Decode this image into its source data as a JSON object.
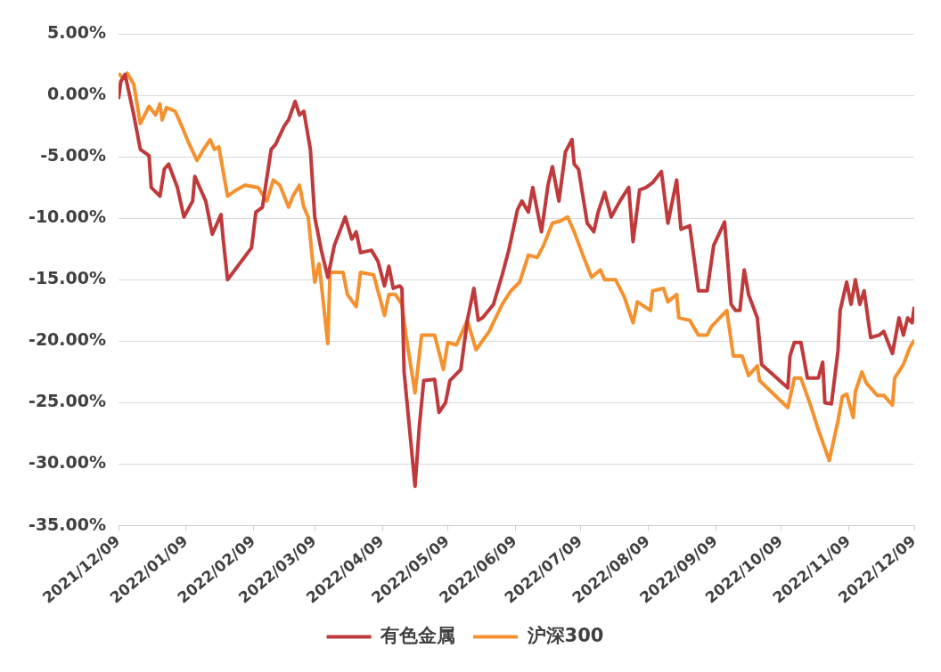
{
  "chart_data": {
    "type": "line",
    "xlim": [
      "2021-12-09",
      "2022-12-09"
    ],
    "xticks": [
      {
        "value": "2021-12-09",
        "label": "2021/12/09"
      },
      {
        "value": "2022-01-09",
        "label": "2022/01/09"
      },
      {
        "value": "2022-02-09",
        "label": "2022/02/09"
      },
      {
        "value": "2022-03-09",
        "label": "2022/03/09"
      },
      {
        "value": "2022-04-09",
        "label": "2022/04/09"
      },
      {
        "value": "2022-05-09",
        "label": "2022/05/09"
      },
      {
        "value": "2022-06-09",
        "label": "2022/06/09"
      },
      {
        "value": "2022-07-09",
        "label": "2022/07/09"
      },
      {
        "value": "2022-08-09",
        "label": "2022/08/09"
      },
      {
        "value": "2022-09-09",
        "label": "2022/09/09"
      },
      {
        "value": "2022-10-09",
        "label": "2022/10/09"
      },
      {
        "value": "2022-11-09",
        "label": "2022/11/09"
      },
      {
        "value": "2022-12-09",
        "label": "2022/12/09"
      }
    ],
    "ylim": [
      -35,
      5
    ],
    "yticks": [
      {
        "value": 5,
        "label": "5.00%"
      },
      {
        "value": 0,
        "label": "0.00%"
      },
      {
        "value": -5,
        "label": "-5.00%"
      },
      {
        "value": -10,
        "label": "-10.00%"
      },
      {
        "value": -15,
        "label": "-15.00%"
      },
      {
        "value": -20,
        "label": "-20.00%"
      },
      {
        "value": -25,
        "label": "-25.00%"
      },
      {
        "value": -30,
        "label": "-30.00%"
      },
      {
        "value": -35,
        "label": "-35.00%"
      }
    ],
    "grid": "y",
    "legend": "bottom",
    "marker": "none",
    "series": [
      {
        "name": "有色金属",
        "color": "#c0393b",
        "x": [
          "2021-12-09",
          "2021-12-10",
          "2021-12-12",
          "2021-12-16",
          "2021-12-19",
          "2021-12-23",
          "2021-12-24",
          "2021-12-28",
          "2021-12-30",
          "2022-01-01",
          "2022-01-05",
          "2022-01-08",
          "2022-01-12",
          "2022-01-13",
          "2022-01-18",
          "2022-01-21",
          "2022-01-25",
          "2022-01-26",
          "2022-01-28",
          "2022-02-08",
          "2022-02-10",
          "2022-02-13",
          "2022-02-17",
          "2022-02-19",
          "2022-02-23",
          "2022-02-25",
          "2022-02-28",
          "2022-03-02",
          "2022-03-04",
          "2022-03-07",
          "2022-03-09",
          "2022-03-12",
          "2022-03-15",
          "2022-03-18",
          "2022-03-23",
          "2022-03-26",
          "2022-03-28",
          "2022-03-30",
          "2022-04-04",
          "2022-04-07",
          "2022-04-10",
          "2022-04-12",
          "2022-04-14",
          "2022-04-17",
          "2022-04-18",
          "2022-04-19",
          "2022-04-24",
          "2022-04-26",
          "2022-04-28",
          "2022-05-03",
          "2022-05-05",
          "2022-05-08",
          "2022-05-10",
          "2022-05-15",
          "2022-05-18",
          "2022-05-21",
          "2022-05-23",
          "2022-05-25",
          "2022-05-30",
          "2022-06-03",
          "2022-06-06",
          "2022-06-10",
          "2022-06-12",
          "2022-06-15",
          "2022-06-17",
          "2022-06-21",
          "2022-06-24",
          "2022-06-26",
          "2022-06-29",
          "2022-07-02",
          "2022-07-05",
          "2022-07-06",
          "2022-07-08",
          "2022-07-12",
          "2022-07-15",
          "2022-07-17",
          "2022-07-20",
          "2022-07-23",
          "2022-07-27",
          "2022-07-31",
          "2022-08-02",
          "2022-08-05",
          "2022-08-08",
          "2022-08-11",
          "2022-08-15",
          "2022-08-18",
          "2022-08-22",
          "2022-08-24",
          "2022-08-28",
          "2022-09-01",
          "2022-09-05",
          "2022-09-08",
          "2022-09-13",
          "2022-09-16",
          "2022-09-18",
          "2022-09-20",
          "2022-09-22",
          "2022-09-24",
          "2022-09-28",
          "2022-09-30",
          "2022-10-12",
          "2022-10-13",
          "2022-10-15",
          "2022-10-18",
          "2022-10-21",
          "2022-10-26",
          "2022-10-28",
          "2022-10-29",
          "2022-11-01",
          "2022-11-04",
          "2022-11-05",
          "2022-11-08",
          "2022-11-10",
          "2022-11-12",
          "2022-11-14",
          "2022-11-16",
          "2022-11-19",
          "2022-11-23",
          "2022-11-25",
          "2022-11-29",
          "2022-12-02",
          "2022-12-04",
          "2022-12-06",
          "2022-12-08",
          "2022-12-09"
        ],
        "values": [
          -0.3,
          1.1,
          1.7,
          -1.6,
          -4.4,
          -4.9,
          -7.5,
          -8.2,
          -6.0,
          -5.6,
          -7.5,
          -9.9,
          -8.6,
          -6.6,
          -8.6,
          -11.3,
          -9.7,
          -11.7,
          -15.0,
          -12.4,
          -9.5,
          -9.1,
          -4.4,
          -4.0,
          -2.5,
          -2.0,
          -0.5,
          -1.6,
          -1.3,
          -4.4,
          -9.9,
          -12.6,
          -14.8,
          -12.2,
          -9.9,
          -11.7,
          -11.1,
          -12.8,
          -12.6,
          -13.5,
          -15.5,
          -13.9,
          -15.7,
          -15.5,
          -15.7,
          -22.5,
          -31.8,
          -26.9,
          -23.2,
          -23.1,
          -25.8,
          -25.0,
          -23.2,
          -22.3,
          -18.3,
          -15.7,
          -18.3,
          -18.1,
          -17.0,
          -14.6,
          -12.6,
          -9.3,
          -8.6,
          -9.5,
          -7.5,
          -11.1,
          -7.3,
          -5.8,
          -8.6,
          -4.6,
          -3.6,
          -5.6,
          -6.0,
          -10.4,
          -11.1,
          -9.5,
          -7.9,
          -9.9,
          -8.6,
          -7.5,
          -11.9,
          -7.7,
          -7.5,
          -7.1,
          -6.2,
          -10.4,
          -6.9,
          -10.9,
          -10.6,
          -15.9,
          -15.9,
          -12.2,
          -10.3,
          -17.0,
          -17.5,
          -17.5,
          -14.2,
          -16.2,
          -18.1,
          -21.9,
          -23.8,
          -21.2,
          -20.1,
          -20.1,
          -23.0,
          -23.0,
          -21.7,
          -25.0,
          -25.1,
          -20.8,
          -17.5,
          -15.2,
          -17.0,
          -15.0,
          -17.0,
          -15.9,
          -19.7,
          -19.5,
          -19.2,
          -21.0,
          -18.1,
          -19.5,
          -18.1,
          -18.5,
          -17.2
        ]
      },
      {
        "name": "沪深300",
        "color": "#f5912e",
        "x": [
          "2021-12-09",
          "2021-12-11",
          "2021-12-13",
          "2021-12-16",
          "2021-12-19",
          "2021-12-23",
          "2021-12-26",
          "2021-12-28",
          "2021-12-29",
          "2021-12-31",
          "2022-01-04",
          "2022-01-07",
          "2022-01-10",
          "2022-01-14",
          "2022-01-17",
          "2022-01-20",
          "2022-01-22",
          "2022-01-24",
          "2022-01-26",
          "2022-01-28",
          "2022-02-01",
          "2022-02-05",
          "2022-02-11",
          "2022-02-15",
          "2022-02-18",
          "2022-02-21",
          "2022-02-25",
          "2022-02-27",
          "2022-03-02",
          "2022-03-04",
          "2022-03-06",
          "2022-03-09",
          "2022-03-11",
          "2022-03-15",
          "2022-03-16",
          "2022-03-22",
          "2022-03-24",
          "2022-03-28",
          "2022-03-30",
          "2022-04-05",
          "2022-04-10",
          "2022-04-12",
          "2022-04-15",
          "2022-04-18",
          "2022-04-20",
          "2022-04-24",
          "2022-04-27",
          "2022-05-03",
          "2022-05-07",
          "2022-05-09",
          "2022-05-13",
          "2022-05-18",
          "2022-05-22",
          "2022-05-28",
          "2022-06-03",
          "2022-06-07",
          "2022-06-11",
          "2022-06-15",
          "2022-06-19",
          "2022-06-22",
          "2022-06-26",
          "2022-06-30",
          "2022-07-03",
          "2022-07-06",
          "2022-07-10",
          "2022-07-14",
          "2022-07-18",
          "2022-07-20",
          "2022-07-25",
          "2022-07-29",
          "2022-08-02",
          "2022-08-04",
          "2022-08-10",
          "2022-08-11",
          "2022-08-16",
          "2022-08-18",
          "2022-08-22",
          "2022-08-23",
          "2022-08-28",
          "2022-09-01",
          "2022-09-05",
          "2022-09-07",
          "2022-09-14",
          "2022-09-17",
          "2022-09-21",
          "2022-09-24",
          "2022-09-28",
          "2022-09-29",
          "2022-10-12",
          "2022-10-15",
          "2022-10-18",
          "2022-10-22",
          "2022-10-26",
          "2022-10-31",
          "2022-11-04",
          "2022-11-06",
          "2022-11-08",
          "2022-11-11",
          "2022-11-12",
          "2022-11-15",
          "2022-11-17",
          "2022-11-22",
          "2022-11-25",
          "2022-11-29",
          "2022-11-30",
          "2022-12-04",
          "2022-12-07",
          "2022-12-09"
        ],
        "values": [
          1.8,
          1.4,
          1.8,
          0.9,
          -2.3,
          -0.9,
          -1.6,
          -0.7,
          -2.0,
          -1.0,
          -1.3,
          -2.5,
          -3.8,
          -5.3,
          -4.4,
          -3.6,
          -4.4,
          -4.2,
          -6.2,
          -8.2,
          -7.7,
          -7.3,
          -7.5,
          -8.6,
          -6.9,
          -7.3,
          -9.1,
          -8.2,
          -7.3,
          -9.1,
          -9.9,
          -15.2,
          -13.7,
          -20.2,
          -14.4,
          -14.4,
          -16.2,
          -17.2,
          -14.4,
          -14.6,
          -17.9,
          -16.2,
          -16.2,
          -17.0,
          -19.7,
          -24.2,
          -19.5,
          -19.5,
          -22.3,
          -20.1,
          -20.3,
          -18.3,
          -20.7,
          -19.2,
          -17.0,
          -15.9,
          -15.2,
          -13.0,
          -13.2,
          -12.2,
          -10.4,
          -10.2,
          -9.9,
          -11.1,
          -13.0,
          -14.8,
          -14.2,
          -15.0,
          -15.0,
          -16.4,
          -18.5,
          -16.8,
          -17.5,
          -15.9,
          -15.7,
          -16.8,
          -16.2,
          -18.1,
          -18.3,
          -19.5,
          -19.5,
          -18.8,
          -17.5,
          -21.2,
          -21.2,
          -22.8,
          -22.0,
          -23.2,
          -25.4,
          -23.0,
          -23.0,
          -25.0,
          -27.2,
          -29.7,
          -26.5,
          -24.5,
          -24.3,
          -26.2,
          -24.1,
          -22.5,
          -23.4,
          -24.4,
          -24.4,
          -25.2,
          -23.0,
          -21.9,
          -20.5,
          -19.9
        ]
      }
    ]
  }
}
